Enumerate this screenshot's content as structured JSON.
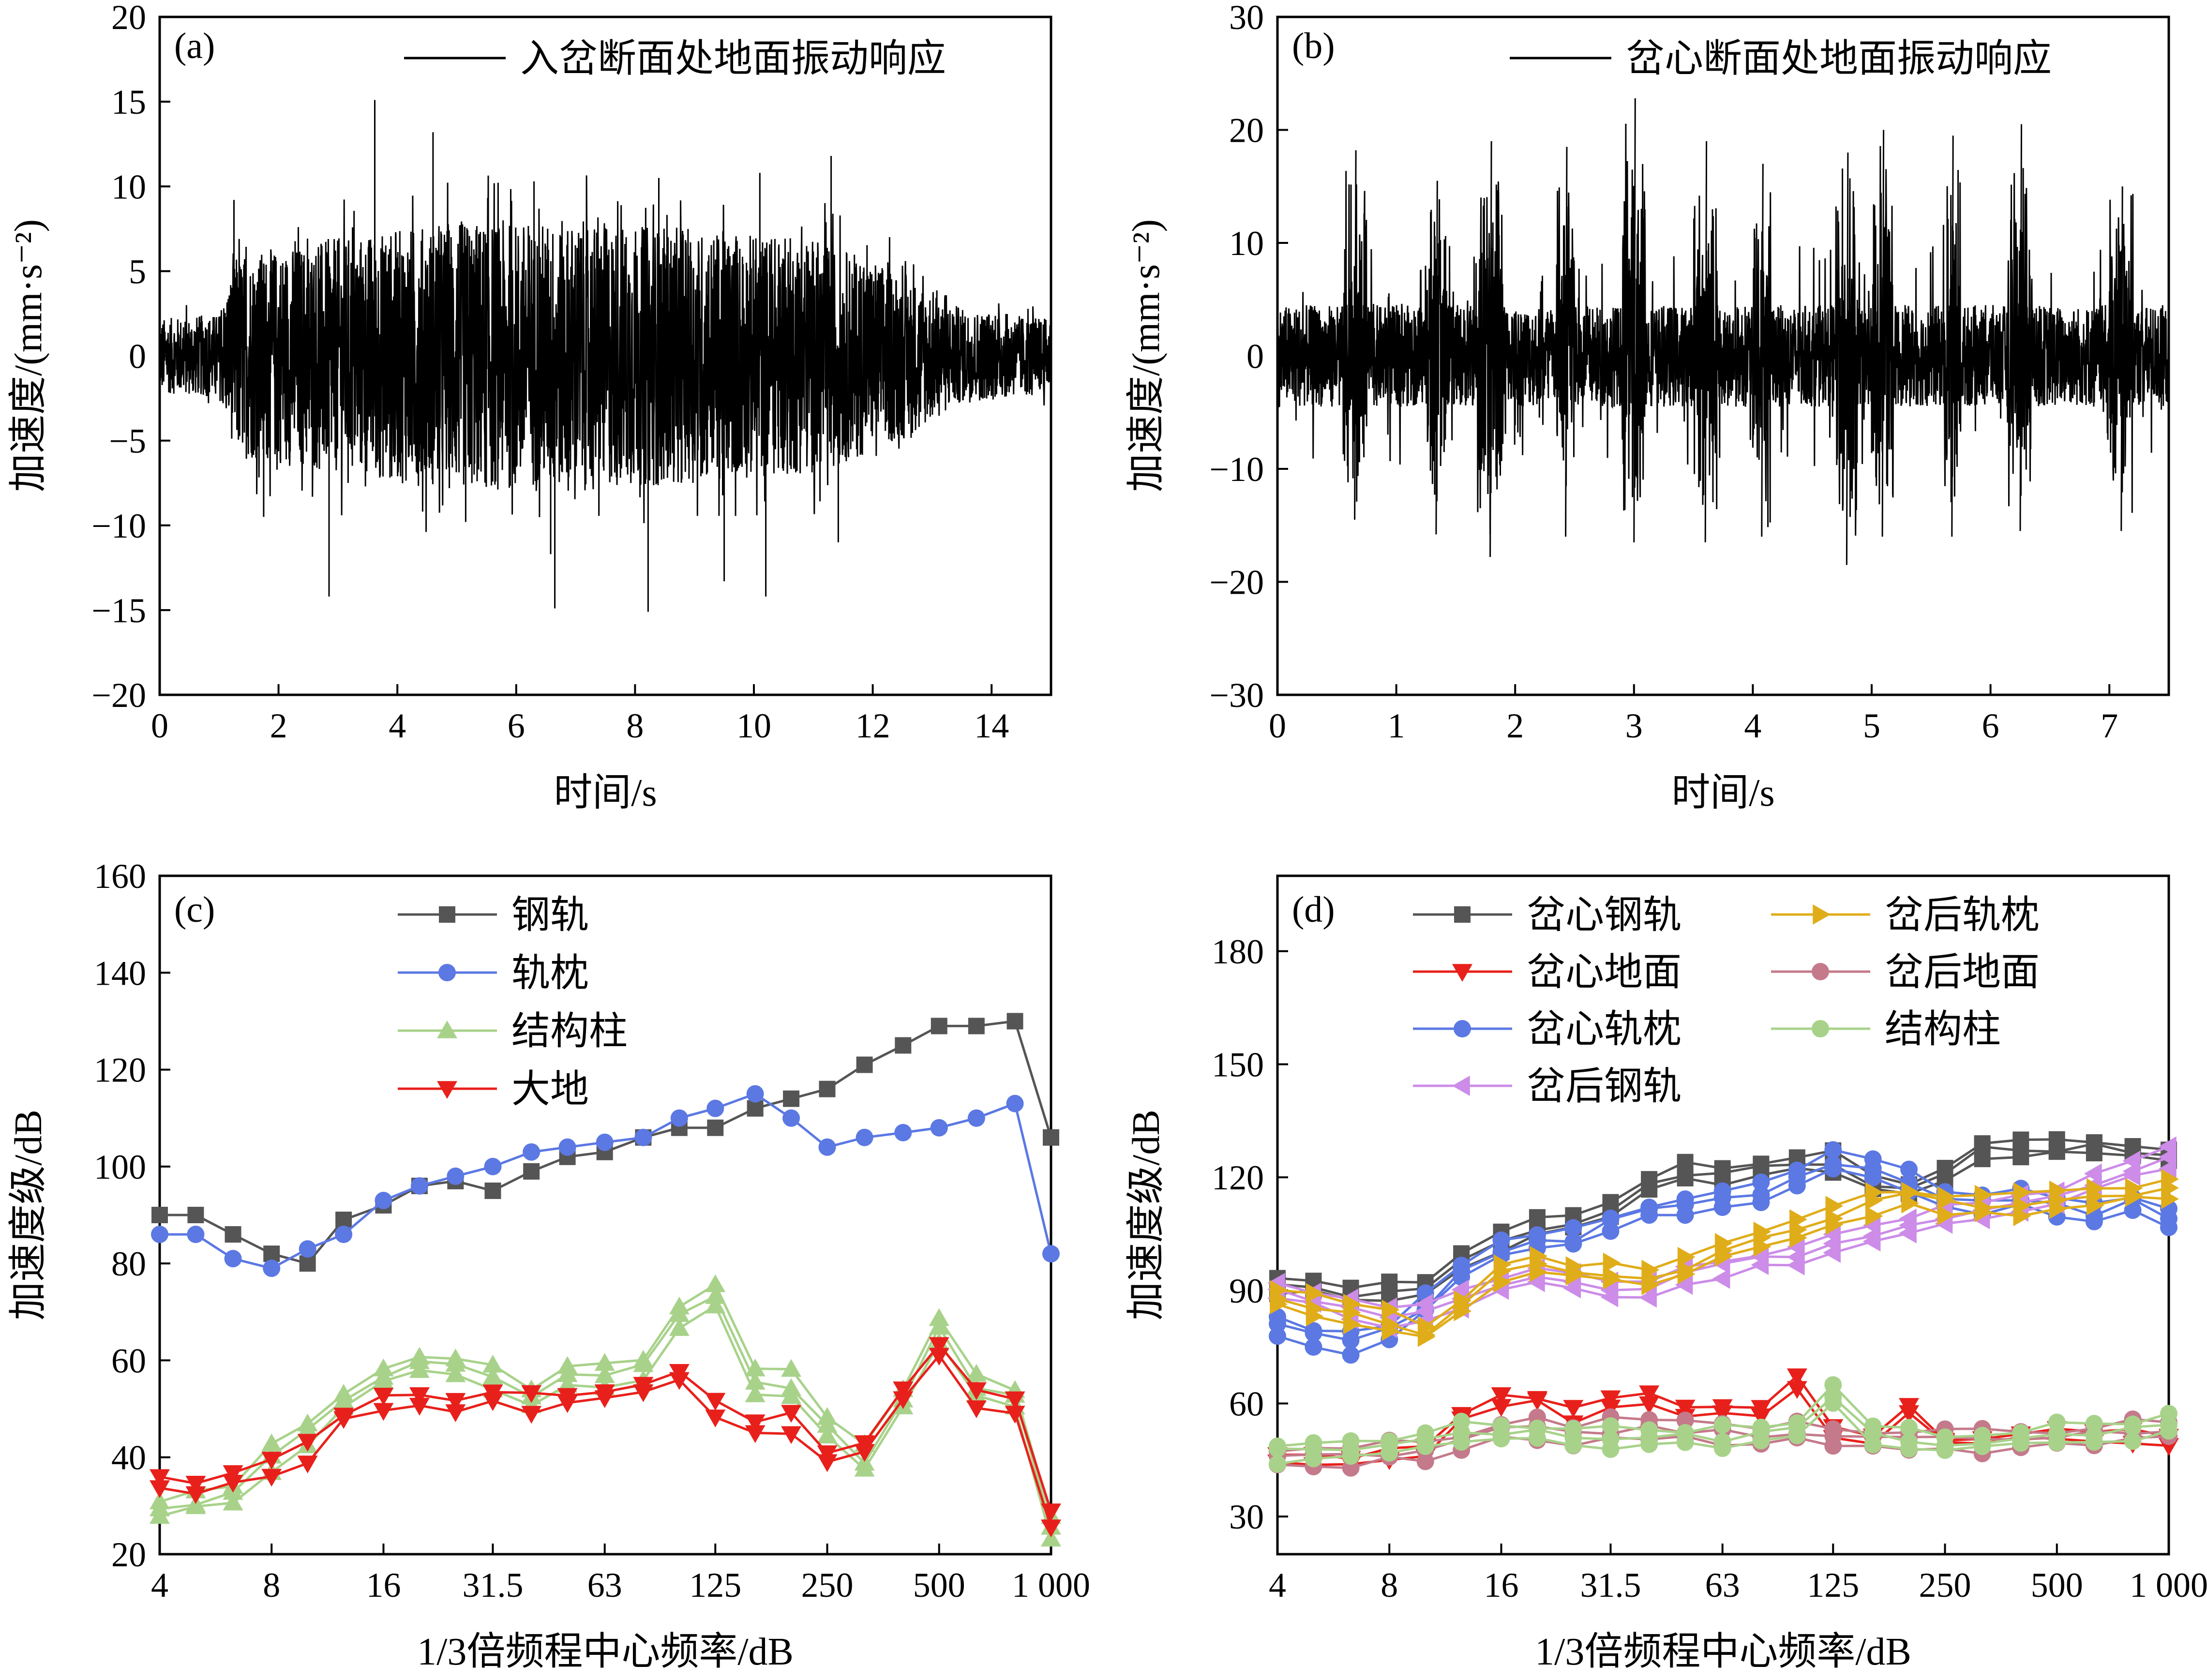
{
  "chart_data": [
    {
      "type": "line",
      "panel_label": "(a)",
      "xlabel": "时间/s",
      "ylabel": "加速度/(mm·s⁻²)",
      "xlim": [
        0,
        15
      ],
      "ylim": [
        -20,
        20
      ],
      "xticks": [
        0,
        2,
        4,
        6,
        8,
        10,
        12,
        14
      ],
      "yticks": [
        -20,
        -15,
        -10,
        -5,
        0,
        5,
        10,
        15,
        20
      ],
      "xtick_labels": [
        "0",
        "2",
        "4",
        "6",
        "8",
        "10",
        "12",
        "14"
      ],
      "ytick_labels": [
        "−20",
        "−15",
        "−10",
        "−5",
        "0",
        "5",
        "10",
        "15",
        "20"
      ],
      "legend": [
        {
          "name": "入岔断面处地面振动响应",
          "color": "#000000",
          "marker": "none"
        }
      ],
      "signal": {
        "duration": 15,
        "envelope": [
          [
            0,
            2.2
          ],
          [
            1.0,
            2.5
          ],
          [
            1.3,
            6
          ],
          [
            3,
            7
          ],
          [
            5,
            8
          ],
          [
            7,
            8
          ],
          [
            9,
            7.5
          ],
          [
            11,
            7
          ],
          [
            12.5,
            5
          ],
          [
            13.5,
            2.8
          ],
          [
            15,
            2.2
          ]
        ],
        "peaks": [
          [
            1.25,
            9.2
          ],
          [
            1.75,
            -9.5
          ],
          [
            2.85,
            -14.2
          ],
          [
            3.62,
            15.1
          ],
          [
            4.6,
            13.2
          ],
          [
            5.15,
            -9.8
          ],
          [
            6.3,
            10.3
          ],
          [
            6.58,
            -11.7
          ],
          [
            6.65,
            -14.9
          ],
          [
            8.22,
            -15.1
          ],
          [
            8.4,
            10.5
          ],
          [
            9.5,
            -13.3
          ],
          [
            10.1,
            10.8
          ],
          [
            10.2,
            -14.2
          ],
          [
            11.3,
            11.8
          ],
          [
            11.42,
            -11.0
          ]
        ]
      }
    },
    {
      "type": "line",
      "panel_label": "(b)",
      "xlabel": "时间/s",
      "ylabel": "加速度/(mm·s⁻²)",
      "xlim": [
        0,
        7.5
      ],
      "ylim": [
        -30,
        30
      ],
      "xticks": [
        0,
        1,
        2,
        3,
        4,
        5,
        6,
        7
      ],
      "yticks": [
        -30,
        -20,
        -10,
        0,
        10,
        20,
        30
      ],
      "xtick_labels": [
        "0",
        "1",
        "2",
        "3",
        "4",
        "5",
        "6",
        "7"
      ],
      "ytick_labels": [
        "−30",
        "−20",
        "−10",
        "0",
        "10",
        "20",
        "30"
      ],
      "legend": [
        {
          "name": "岔心断面处地面振动响应",
          "color": "#000000",
          "marker": "none"
        }
      ],
      "signal": {
        "duration": 7.5,
        "bursts": [
          [
            0.55,
            0.75,
            18.2,
            -14.5
          ],
          [
            1.25,
            1.42,
            15.5,
            -15.8
          ],
          [
            1.68,
            1.9,
            19.0,
            -17.8
          ],
          [
            2.35,
            2.5,
            18.5,
            -16.0
          ],
          [
            2.9,
            3.1,
            22.8,
            -16.5
          ],
          [
            3.5,
            3.7,
            19.0,
            -16.5
          ],
          [
            4.0,
            4.15,
            17.0,
            -16.0
          ],
          [
            4.7,
            4.88,
            18.0,
            -18.5
          ],
          [
            5.0,
            5.18,
            20.0,
            -16.0
          ],
          [
            5.6,
            5.75,
            19.5,
            -16.0
          ],
          [
            6.15,
            6.35,
            20.5,
            -15.5
          ],
          [
            7.0,
            7.2,
            15.0,
            -15.5
          ]
        ],
        "base": 4.5
      }
    },
    {
      "type": "line",
      "panel_label": "(c)",
      "xlabel": "1/3倍频程中心频率/dB",
      "ylabel": "加速度级/dB",
      "x_scale": "log",
      "xlim": [
        4,
        1000
      ],
      "ylim": [
        20,
        160
      ],
      "xticks": [
        4,
        8,
        16,
        31.5,
        63,
        125,
        250,
        500,
        1000
      ],
      "xtick_labels": [
        "4",
        "8",
        "16",
        "31.5",
        "63",
        "125",
        "250",
        "500",
        "1 000"
      ],
      "yticks": [
        20,
        40,
        60,
        80,
        100,
        120,
        140,
        160
      ],
      "ytick_labels": [
        "20",
        "40",
        "60",
        "80",
        "100",
        "120",
        "140",
        "160"
      ],
      "x": [
        4,
        5,
        6.3,
        8,
        10,
        12.5,
        16,
        20,
        25,
        31.5,
        40,
        50,
        63,
        80,
        100,
        125,
        160,
        200,
        250,
        315,
        400,
        500,
        630,
        800,
        1000
      ],
      "series": [
        {
          "name": "钢轨",
          "color": "#555555",
          "marker": "square",
          "copies": 1,
          "values": [
            90,
            90,
            86,
            82,
            80,
            89,
            92,
            96,
            97,
            95,
            99,
            102,
            103,
            106,
            108,
            108,
            112,
            114,
            116,
            121,
            125,
            129,
            129,
            130,
            106
          ]
        },
        {
          "name": "轨枕",
          "color": "#5b78e3",
          "marker": "circle",
          "copies": 1,
          "values": [
            86,
            86,
            81,
            79,
            83,
            86,
            93,
            96,
            98,
            100,
            103,
            104,
            105,
            106,
            110,
            112,
            115,
            110,
            104,
            106,
            107,
            108,
            110,
            113,
            82
          ]
        },
        {
          "name": "结构柱",
          "color": "#a8d28a",
          "marker": "triangle-up",
          "copies": 3,
          "values": [
            29,
            31,
            33,
            40,
            45,
            52,
            57,
            59,
            59,
            57,
            52,
            56,
            57,
            59,
            70,
            73,
            55,
            55,
            46,
            40,
            52,
            66,
            55,
            52,
            25
          ]
        },
        {
          "name": "大地",
          "color": "#e8201b",
          "marker": "triangle-down",
          "copies": 2,
          "values": [
            34,
            34,
            36,
            38,
            41,
            48,
            51,
            51,
            50,
            52,
            51,
            52,
            53,
            54,
            56,
            50,
            47,
            47,
            40,
            43,
            53,
            63,
            52,
            51,
            27
          ]
        }
      ]
    },
    {
      "type": "line",
      "panel_label": "(d)",
      "xlabel": "1/3倍频程中心频率/dB",
      "ylabel": "加速度级/dB",
      "x_scale": "log",
      "xlim": [
        4,
        1000
      ],
      "ylim": [
        20,
        200
      ],
      "xticks": [
        4,
        8,
        16,
        31.5,
        63,
        125,
        250,
        500,
        1000
      ],
      "xtick_labels": [
        "4",
        "8",
        "16",
        "31.5",
        "63",
        "125",
        "250",
        "500",
        "1 000"
      ],
      "yticks": [
        30,
        60,
        90,
        120,
        150,
        180
      ],
      "ytick_labels": [
        "30",
        "60",
        "90",
        "120",
        "150",
        "180"
      ],
      "x": [
        4,
        5,
        6.3,
        8,
        10,
        12.5,
        16,
        20,
        25,
        31.5,
        40,
        50,
        63,
        80,
        100,
        125,
        160,
        200,
        250,
        315,
        400,
        500,
        630,
        800,
        1000
      ],
      "series": [
        {
          "name": "岔心钢轨",
          "color": "#555555",
          "marker": "square",
          "copies": 3,
          "values": [
            92,
            91,
            89,
            89,
            91,
            98,
            103,
            106,
            108,
            112,
            118,
            121,
            121,
            122,
            124,
            124,
            118,
            117,
            121,
            127,
            128,
            128,
            128,
            127,
            126
          ]
        },
        {
          "name": "岔心地面",
          "color": "#e8201b",
          "marker": "triangle-down",
          "copies": 2,
          "values": [
            46,
            46,
            45,
            46,
            48,
            56,
            60,
            61,
            57,
            61,
            62,
            58,
            59,
            58,
            65,
            52,
            50,
            59,
            50,
            50,
            51,
            51,
            51,
            51,
            50
          ]
        },
        {
          "name": "岔心轨枕",
          "color": "#5b78e3",
          "marker": "circle",
          "copies": 3,
          "values": [
            81,
            78,
            76,
            79,
            86,
            95,
            101,
            103,
            104,
            108,
            111,
            113,
            114,
            116,
            120,
            124,
            122,
            119,
            115,
            113,
            115,
            112,
            110,
            113,
            110
          ]
        },
        {
          "name": "岔后钢轨",
          "color": "#cc8ce8",
          "marker": "triangle-left",
          "copies": 3,
          "values": [
            90,
            88,
            85,
            83,
            85,
            88,
            92,
            94,
            92,
            91,
            91,
            94,
            96,
            98,
            100,
            102,
            105,
            107,
            110,
            111,
            113,
            115,
            118,
            122,
            125
          ]
        },
        {
          "name": "岔后轨枕",
          "color": "#e0ad1a",
          "marker": "triangle-right",
          "copies": 3,
          "values": [
            88,
            86,
            84,
            82,
            79,
            86,
            94,
            98,
            95,
            94,
            94,
            96,
            100,
            103,
            107,
            110,
            113,
            115,
            113,
            112,
            113,
            114,
            114,
            116,
            117
          ]
        },
        {
          "name": "岔后地面",
          "color": "#c47a8a",
          "marker": "circle",
          "copies": 3,
          "values": [
            46,
            46,
            46,
            47,
            48,
            50,
            53,
            53,
            52,
            53,
            53,
            53,
            52,
            52,
            53,
            51,
            50,
            51,
            50,
            50,
            51,
            51,
            52,
            53,
            53
          ]
        },
        {
          "name": "结构柱",
          "color": "#a8d28a",
          "marker": "circle",
          "copies": 3,
          "values": [
            47,
            48,
            48,
            48,
            50,
            53,
            52,
            52,
            52,
            51,
            51,
            51,
            51,
            52,
            53,
            62,
            52,
            51,
            50,
            50,
            51,
            52,
            52,
            53,
            55
          ]
        }
      ]
    }
  ]
}
